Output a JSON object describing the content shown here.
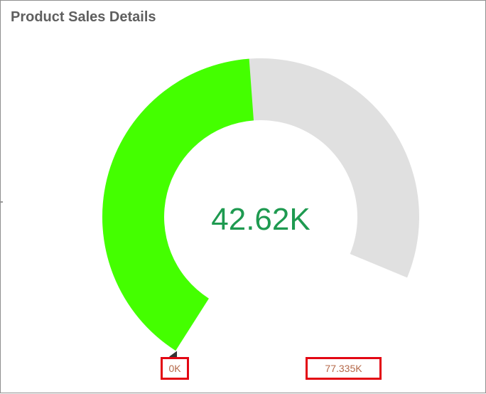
{
  "widget": {
    "title": "Product Sales Details"
  },
  "chart_data": {
    "type": "gauge",
    "title": "Product Sales Details",
    "value": 42620,
    "value_label": "42.62K",
    "min": 0,
    "max": 77335,
    "min_label": "0K",
    "max_label": "77.335K",
    "colors": {
      "value_arc": "#44ff00",
      "track_arc": "#e0e0e0",
      "value_text": "#1e9a50",
      "range_label_text": "#b5694a",
      "range_label_border": "#e30613",
      "pointer": "#333333"
    }
  }
}
